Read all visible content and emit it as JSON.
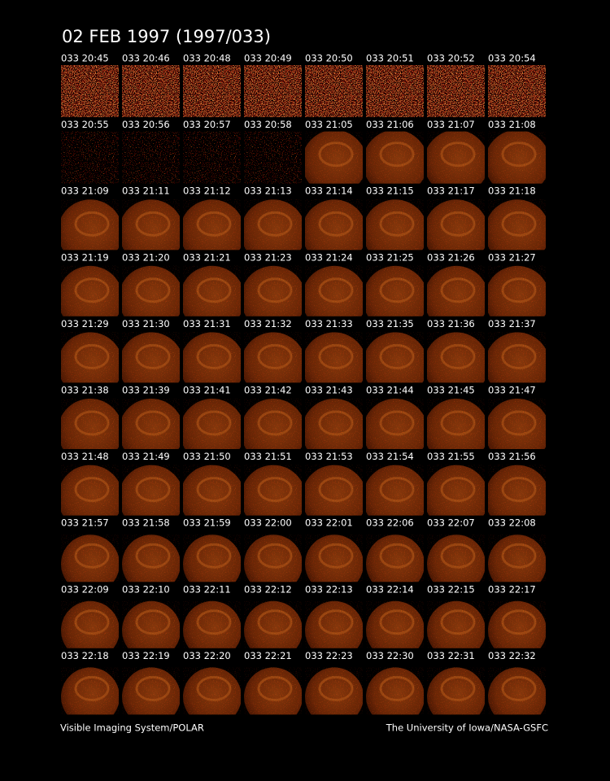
{
  "title": "02 FEB 1997  (1997/033)",
  "frames": [
    "033 20:45",
    "033 20:46",
    "033 20:48",
    "033 20:49",
    "033 20:50",
    "033 20:51",
    "033 20:52",
    "033 20:54",
    "033 20:55",
    "033 20:56",
    "033 20:57",
    "033 20:58",
    "033 21:05",
    "033 21:06",
    "033 21:07",
    "033 21:08",
    "033 21:09",
    "033 21:11",
    "033 21:12",
    "033 21:13",
    "033 21:14",
    "033 21:15",
    "033 21:17",
    "033 21:18",
    "033 21:19",
    "033 21:20",
    "033 21:21",
    "033 21:23",
    "033 21:24",
    "033 21:25",
    "033 21:26",
    "033 21:27",
    "033 21:29",
    "033 21:30",
    "033 21:31",
    "033 21:32",
    "033 21:33",
    "033 21:35",
    "033 21:36",
    "033 21:37",
    "033 21:38",
    "033 21:39",
    "033 21:41",
    "033 21:42",
    "033 21:43",
    "033 21:44",
    "033 21:45",
    "033 21:47",
    "033 21:48",
    "033 21:49",
    "033 21:50",
    "033 21:51",
    "033 21:53",
    "033 21:54",
    "033 21:55",
    "033 21:56",
    "033 21:57",
    "033 21:58",
    "033 21:59",
    "033 22:00",
    "033 22:01",
    "033 22:06",
    "033 22:07",
    "033 22:08",
    "033 22:09",
    "033 22:10",
    "033 22:11",
    "033 22:12",
    "033 22:13",
    "033 22:14",
    "033 22:15",
    "033 22:17",
    "033 22:18",
    "033 22:19",
    "033 22:20",
    "033 22:21",
    "033 22:23",
    "033 22:30",
    "033 22:31",
    "033 22:32"
  ],
  "footer": {
    "left": "Visible Imaging System/POLAR",
    "right": "The University of Iowa/NASA-GSFC"
  }
}
